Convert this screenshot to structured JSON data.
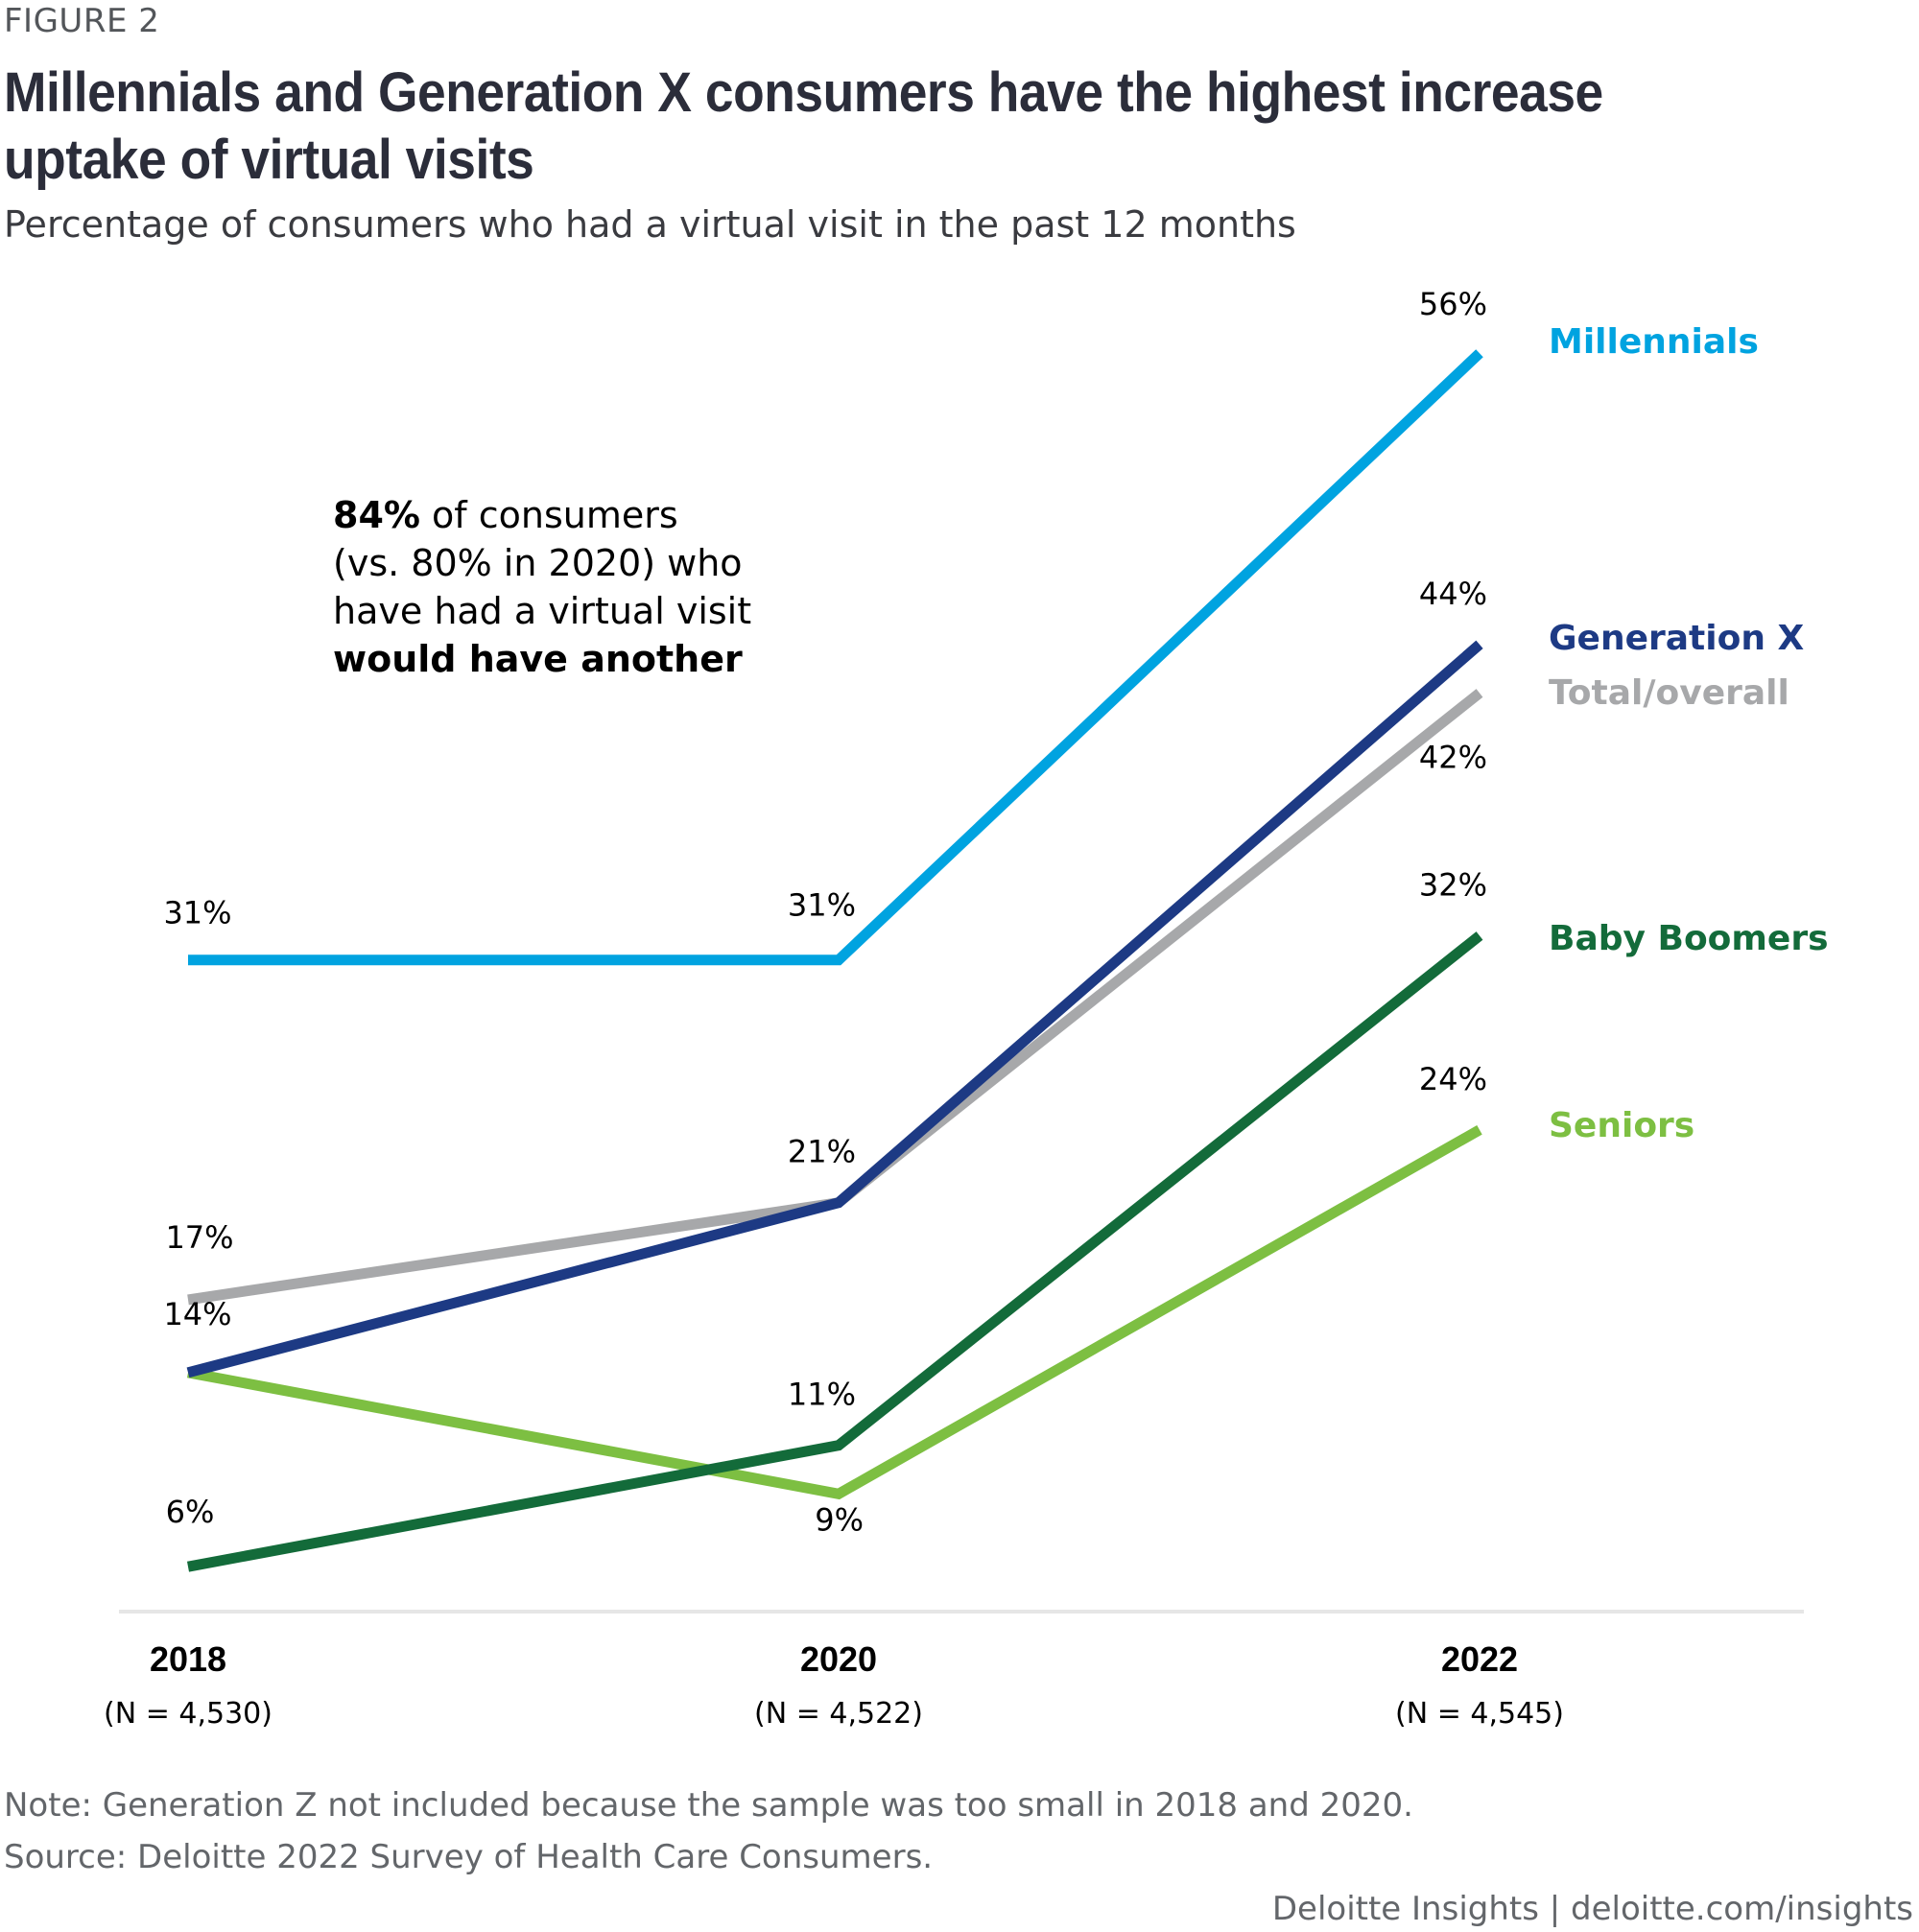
{
  "figure_label": "FIGURE 2",
  "title": "Millennials and Generation X consumers have the highest increase uptake of virtual visits",
  "subtitle": "Percentage of consumers who had a virtual visit in the past 12 months",
  "callout": {
    "bold_lead": "84%",
    "line1_rest": " of consumers",
    "line2": "(vs. 80% in 2020) who",
    "line3": "have had a virtual visit",
    "bold_tail": "would have another"
  },
  "chart_data": {
    "type": "line",
    "title": "Millennials and Generation X consumers have the highest increase uptake of virtual visits",
    "subtitle": "Percentage of consumers who had a virtual visit in the past 12 months",
    "xlabel": "",
    "ylabel": "",
    "x": [
      "2018",
      "2020",
      "2022"
    ],
    "x_sublabels": [
      "(N = 4,530)",
      "(N = 4,522)",
      "(N = 4,545)"
    ],
    "ylim": [
      0,
      60
    ],
    "grid": false,
    "legend": "right (direct labels)",
    "value_suffix": "%",
    "series": [
      {
        "name": "Millennials",
        "color": "#00a3e0",
        "values": [
          31,
          31,
          56
        ]
      },
      {
        "name": "Generation X",
        "color": "#1d3a84",
        "values": [
          14,
          21,
          44
        ]
      },
      {
        "name": "Total/overall",
        "color": "#a7a8aa",
        "values": [
          17,
          21,
          42
        ]
      },
      {
        "name": "Baby Boomers",
        "color": "#136b3a",
        "values": [
          6,
          11,
          32
        ]
      },
      {
        "name": "Seniors",
        "color": "#7dbf42",
        "values": [
          14,
          9,
          24
        ]
      }
    ],
    "data_labels": [
      {
        "series": "Millennials",
        "index": 0,
        "text": "31%"
      },
      {
        "series": "Millennials",
        "index": 1,
        "text": "31%"
      },
      {
        "series": "Millennials",
        "index": 2,
        "text": "56%"
      },
      {
        "series": "Generation X",
        "index": 0,
        "text": "14%"
      },
      {
        "series": "Generation X",
        "index": 1,
        "text": "21%"
      },
      {
        "series": "Generation X",
        "index": 2,
        "text": "44%"
      },
      {
        "series": "Total/overall",
        "index": 0,
        "text": "17%"
      },
      {
        "series": "Total/overall",
        "index": 2,
        "text": "42%"
      },
      {
        "series": "Baby Boomers",
        "index": 0,
        "text": "6%"
      },
      {
        "series": "Baby Boomers",
        "index": 1,
        "text": "11%"
      },
      {
        "series": "Baby Boomers",
        "index": 2,
        "text": "32%"
      },
      {
        "series": "Seniors",
        "index": 1,
        "text": "9%"
      },
      {
        "series": "Seniors",
        "index": 2,
        "text": "24%"
      }
    ],
    "annotation": "84% of consumers (vs. 80% in 2020) who have had a virtual visit would have another"
  },
  "footer": {
    "note": "Note: Generation Z not included because the sample was too small in 2018 and 2020.",
    "source": "Source: Deloitte 2022 Survey of Health Care Consumers.",
    "credit": "Deloitte Insights | deloitte.com/insights"
  }
}
